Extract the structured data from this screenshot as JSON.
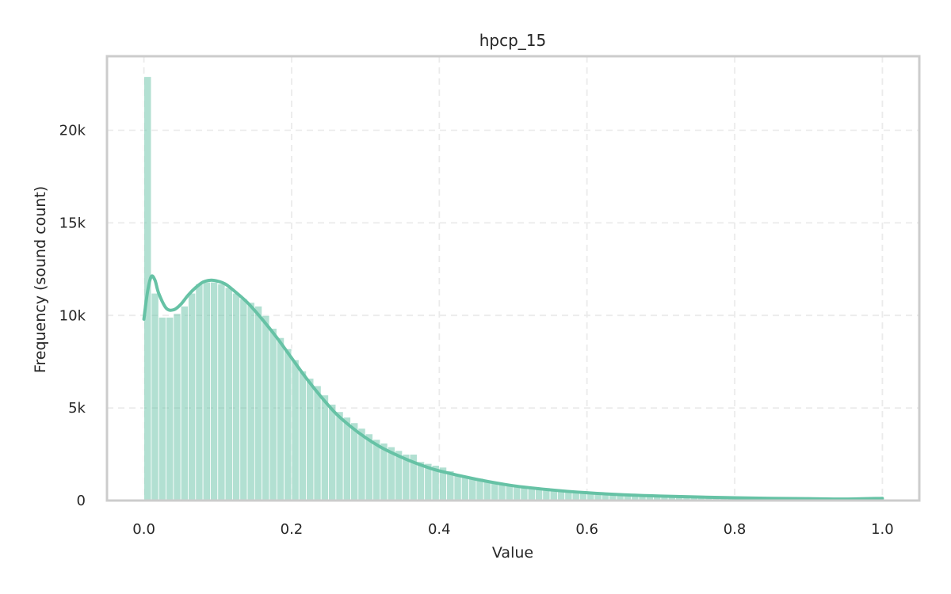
{
  "chart_data": {
    "type": "bar",
    "title": "hpcp_15",
    "xlabel": "Value",
    "ylabel": "Frequency (sound count)",
    "xlim": [
      -0.05,
      1.05
    ],
    "ylim": [
      0,
      24000
    ],
    "x_ticks": [
      {
        "value": 0.0,
        "label": "0.0"
      },
      {
        "value": 0.2,
        "label": "0.2"
      },
      {
        "value": 0.4,
        "label": "0.4"
      },
      {
        "value": 0.6,
        "label": "0.6"
      },
      {
        "value": 0.8,
        "label": "0.8"
      },
      {
        "value": 1.0,
        "label": "1.0"
      }
    ],
    "y_ticks": [
      {
        "value": 0,
        "label": "0"
      },
      {
        "value": 5000,
        "label": "5k"
      },
      {
        "value": 10000,
        "label": "10k"
      },
      {
        "value": 15000,
        "label": "15k"
      },
      {
        "value": 20000,
        "label": "20k"
      }
    ],
    "grid": true,
    "bar_color": "#66c2a5",
    "bar_opacity": 0.5,
    "kde_color": "#66c2a5",
    "bin_range": [
      0,
      1
    ],
    "counts": [
      22900,
      11200,
      9900,
      9900,
      10100,
      10500,
      11200,
      11700,
      11800,
      11800,
      11700,
      11500,
      11200,
      10900,
      10700,
      10500,
      10000,
      9300,
      8800,
      8200,
      7600,
      7000,
      6600,
      6200,
      5700,
      5200,
      4800,
      4500,
      4200,
      3900,
      3600,
      3300,
      3100,
      2900,
      2700,
      2500,
      2500,
      2100,
      2000,
      1900,
      1800,
      1600,
      1400,
      1300,
      1250,
      1200,
      1100,
      1000,
      950,
      900,
      850,
      800,
      750,
      700,
      650,
      600,
      560,
      520,
      480,
      450,
      420,
      390,
      360,
      340,
      320,
      300,
      280,
      260,
      240,
      220,
      200,
      190,
      180,
      170,
      160,
      150,
      140,
      130,
      120,
      110,
      100,
      95,
      90,
      85,
      80,
      75,
      70,
      65,
      60,
      55,
      50,
      48,
      46,
      44,
      42,
      40,
      38,
      36,
      34,
      32
    ],
    "kde": {
      "x": [
        0.0,
        0.005,
        0.01,
        0.015,
        0.02,
        0.03,
        0.04,
        0.05,
        0.06,
        0.07,
        0.08,
        0.09,
        0.1,
        0.11,
        0.12,
        0.14,
        0.16,
        0.18,
        0.2,
        0.22,
        0.24,
        0.26,
        0.28,
        0.3,
        0.32,
        0.34,
        0.36,
        0.38,
        0.4,
        0.45,
        0.5,
        0.55,
        0.6,
        0.65,
        0.7,
        0.75,
        0.8,
        0.85,
        0.9,
        0.95,
        1.0
      ],
      "y": [
        9800,
        11300,
        12100,
        11900,
        11200,
        10400,
        10300,
        10600,
        11100,
        11500,
        11800,
        11900,
        11850,
        11700,
        11400,
        10700,
        9800,
        8800,
        7700,
        6600,
        5600,
        4700,
        4000,
        3400,
        2900,
        2500,
        2150,
        1850,
        1600,
        1150,
        800,
        580,
        420,
        310,
        240,
        190,
        150,
        120,
        100,
        80,
        120
      ]
    }
  }
}
